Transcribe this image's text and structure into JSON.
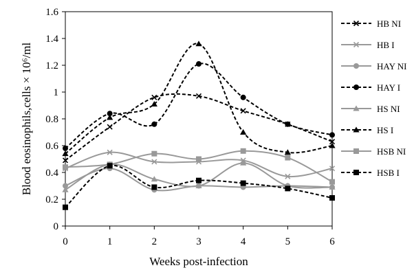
{
  "chart_data": {
    "type": "line",
    "xlabel": "Weeks post-infection",
    "ylabel": "Blood eosinophils,cells × 10⁶/ml",
    "x": [
      0,
      1,
      2,
      3,
      4,
      5,
      6
    ],
    "xlim": [
      0,
      6
    ],
    "ylim": [
      0,
      1.6
    ],
    "yticks": [
      "0",
      "0.2",
      "0.4",
      "0.6",
      "0.8",
      "1",
      "1.2",
      "1.4",
      "1.6"
    ],
    "xticks": [
      "0",
      "1",
      "2",
      "3",
      "4",
      "5",
      "6"
    ],
    "grid": false,
    "legend_position": "right",
    "series": [
      {
        "name": "HB NI",
        "values": [
          0.49,
          0.74,
          0.96,
          0.97,
          0.86,
          0.76,
          0.63
        ],
        "color": "#000000",
        "dashed": true,
        "marker": "x"
      },
      {
        "name": "HB I",
        "values": [
          0.43,
          0.55,
          0.48,
          0.48,
          0.49,
          0.37,
          0.43
        ],
        "color": "#999999",
        "dashed": false,
        "marker": "x"
      },
      {
        "name": "HAY NI",
        "values": [
          0.3,
          0.43,
          0.27,
          0.3,
          0.29,
          0.3,
          0.29
        ],
        "color": "#999999",
        "dashed": false,
        "marker": "circle"
      },
      {
        "name": "HAY I",
        "values": [
          0.58,
          0.84,
          0.76,
          1.21,
          0.96,
          0.76,
          0.68
        ],
        "color": "#000000",
        "dashed": true,
        "marker": "circle"
      },
      {
        "name": "HS NI",
        "values": [
          0.27,
          0.46,
          0.35,
          0.3,
          0.47,
          0.3,
          0.29
        ],
        "color": "#999999",
        "dashed": false,
        "marker": "triangle"
      },
      {
        "name": "HS I",
        "values": [
          0.54,
          0.81,
          0.91,
          1.36,
          0.7,
          0.55,
          0.6
        ],
        "color": "#000000",
        "dashed": true,
        "marker": "triangle"
      },
      {
        "name": "HSB NI",
        "values": [
          0.44,
          0.46,
          0.54,
          0.5,
          0.56,
          0.51,
          0.33
        ],
        "color": "#999999",
        "dashed": false,
        "marker": "square"
      },
      {
        "name": "HSB I",
        "values": [
          0.14,
          0.45,
          0.29,
          0.34,
          0.32,
          0.28,
          0.21
        ],
        "color": "#000000",
        "dashed": true,
        "marker": "square"
      }
    ]
  }
}
